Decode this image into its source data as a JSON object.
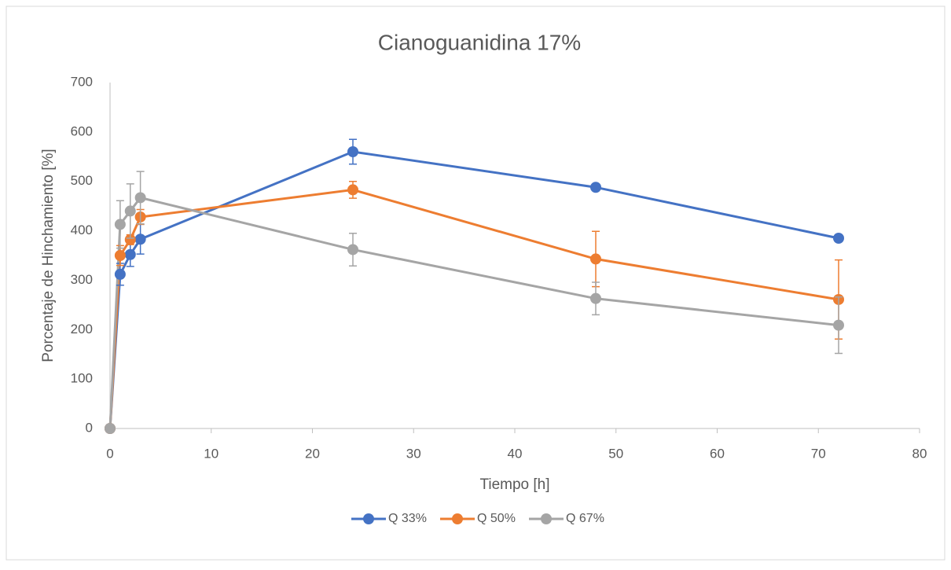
{
  "chart_data": {
    "type": "line",
    "title": "Cianoguanidina 17%",
    "x_label": "Tiempo [h]",
    "y_label": "Porcentaje de Hinchamiento [%]",
    "x": [
      0,
      1,
      2,
      3,
      24,
      48,
      72
    ],
    "series": [
      {
        "name": "Q 33%",
        "color": "#4472c4",
        "values": [
          0,
          312,
          352,
          383,
          560,
          488,
          385
        ],
        "errors": [
          0,
          22,
          24,
          30,
          25,
          0,
          0
        ]
      },
      {
        "name": "Q 50%",
        "color": "#ed7d31",
        "values": [
          0,
          350,
          382,
          428,
          483,
          343,
          261
        ],
        "errors": [
          0,
          20,
          10,
          15,
          17,
          56,
          80
        ]
      },
      {
        "name": "Q 67%",
        "color": "#a5a5a5",
        "values": [
          0,
          413,
          440,
          467,
          362,
          263,
          209
        ],
        "errors": [
          0,
          48,
          55,
          53,
          33,
          33,
          57
        ]
      }
    ],
    "xlim": [
      0,
      80
    ],
    "xticks": [
      0,
      10,
      20,
      30,
      40,
      50,
      60,
      70,
      80
    ],
    "ylim": [
      0,
      700
    ],
    "yticks": [
      0,
      100,
      200,
      300,
      400,
      500,
      600,
      700
    ],
    "legend": "bottom"
  }
}
